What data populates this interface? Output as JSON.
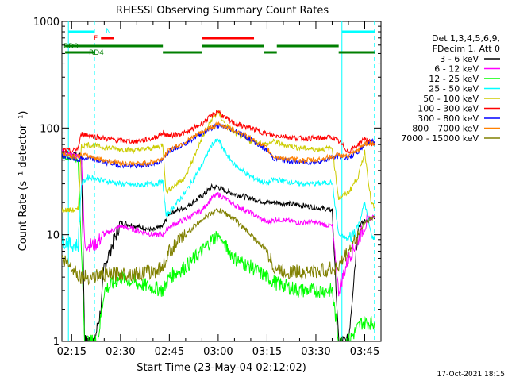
{
  "footer": {
    "timestamp": "17-Oct-2021 18:15"
  },
  "chart_data": {
    "type": "line",
    "title": "RHESSI Observing Summary Count Rates",
    "xlabel": "Start Time (23-May-04 02:12:02)",
    "ylabel": "Count Rate (s⁻¹ detector⁻¹)",
    "yscale": "log",
    "ylim": [
      1,
      1000
    ],
    "xlim": [
      "02:12",
      "03:50"
    ],
    "x_ticks": [
      "02:15",
      "02:30",
      "02:45",
      "03:00",
      "03:15",
      "03:30",
      "03:45"
    ],
    "y_ticks": [
      "1",
      "10",
      "100",
      "1000"
    ],
    "legend_header": [
      "Det 1,3,4,5,6,9,",
      "FDecim 1, Att 0"
    ],
    "legend_position": "right",
    "flags": {
      "N": {
        "label": "N",
        "color": "#00ffff",
        "intervals": [
          [
            "02:14",
            "02:22"
          ],
          [
            "03:38",
            "03:48"
          ]
        ]
      },
      "F": {
        "label": "F",
        "color": "#ff0000",
        "intervals": [
          [
            "02:24",
            "02:28"
          ],
          [
            "02:55",
            "03:11"
          ]
        ]
      },
      "RD0": {
        "label": "RD0",
        "color": "#007f00",
        "intervals": [
          [
            "02:13",
            "02:43"
          ],
          [
            "02:55",
            "03:14"
          ],
          [
            "03:18",
            "03:37"
          ]
        ]
      },
      "RD4": {
        "label": "RD4",
        "color": "#007f00",
        "intervals": [
          [
            "02:13",
            "02:22"
          ],
          [
            "02:43",
            "02:55"
          ],
          [
            "03:14",
            "03:18"
          ],
          [
            "03:37",
            "03:48"
          ]
        ]
      }
    },
    "series": [
      {
        "name": "3 - 6 keV",
        "color": "#000000",
        "points": [
          [
            "02:12",
            60
          ],
          [
            "02:15",
            57
          ],
          [
            "02:18",
            55
          ],
          [
            "02:19",
            1
          ],
          [
            "02:22",
            1
          ],
          [
            "02:24",
            2
          ],
          [
            "02:25",
            5
          ],
          [
            "02:30",
            13
          ],
          [
            "02:35",
            12
          ],
          [
            "02:40",
            11
          ],
          [
            "02:43",
            12
          ],
          [
            "02:45",
            16
          ],
          [
            "02:50",
            18
          ],
          [
            "02:55",
            23
          ],
          [
            "02:58",
            28
          ],
          [
            "03:00",
            28
          ],
          [
            "03:02",
            26
          ],
          [
            "03:05",
            24
          ],
          [
            "03:10",
            22
          ],
          [
            "03:15",
            20
          ],
          [
            "03:18",
            20
          ],
          [
            "03:25",
            19
          ],
          [
            "03:30",
            18
          ],
          [
            "03:35",
            17
          ],
          [
            "03:37",
            1
          ],
          [
            "03:40",
            1
          ],
          [
            "03:43",
            12
          ],
          [
            "03:46",
            14
          ],
          [
            "03:48",
            14
          ]
        ]
      },
      {
        "name": "6 - 12 keV",
        "color": "#ff00ff",
        "points": [
          [
            "02:12",
            60
          ],
          [
            "02:15",
            56
          ],
          [
            "02:18",
            55
          ],
          [
            "02:19",
            8
          ],
          [
            "02:22",
            8
          ],
          [
            "02:25",
            10
          ],
          [
            "02:30",
            12
          ],
          [
            "02:35",
            11
          ],
          [
            "02:40",
            10
          ],
          [
            "02:43",
            10
          ],
          [
            "02:45",
            12
          ],
          [
            "02:50",
            14
          ],
          [
            "02:55",
            17
          ],
          [
            "02:58",
            22
          ],
          [
            "03:00",
            24
          ],
          [
            "03:02",
            22
          ],
          [
            "03:05",
            19
          ],
          [
            "03:10",
            16
          ],
          [
            "03:15",
            13
          ],
          [
            "03:18",
            14
          ],
          [
            "03:25",
            13
          ],
          [
            "03:30",
            13
          ],
          [
            "03:35",
            12
          ],
          [
            "03:37",
            3
          ],
          [
            "03:40",
            6
          ],
          [
            "03:43",
            9
          ],
          [
            "03:46",
            14
          ],
          [
            "03:48",
            15
          ]
        ]
      },
      {
        "name": "12 - 25 keV",
        "color": "#00ff00",
        "points": [
          [
            "02:12",
            55
          ],
          [
            "02:15",
            52
          ],
          [
            "02:17",
            50
          ],
          [
            "02:19",
            1
          ],
          [
            "02:23",
            1
          ],
          [
            "02:25",
            3
          ],
          [
            "02:30",
            4
          ],
          [
            "02:35",
            3.5
          ],
          [
            "02:40",
            3.2
          ],
          [
            "02:43",
            3
          ],
          [
            "02:45",
            4
          ],
          [
            "02:50",
            5
          ],
          [
            "02:55",
            7
          ],
          [
            "02:58",
            9
          ],
          [
            "03:00",
            10
          ],
          [
            "03:02",
            8
          ],
          [
            "03:05",
            6
          ],
          [
            "03:10",
            5
          ],
          [
            "03:15",
            4
          ],
          [
            "03:18",
            3.5
          ],
          [
            "03:25",
            3
          ],
          [
            "03:30",
            3
          ],
          [
            "03:35",
            3
          ],
          [
            "03:37",
            1
          ],
          [
            "03:40",
            1
          ],
          [
            "03:44",
            1.5
          ],
          [
            "03:48",
            1.5
          ]
        ]
      },
      {
        "name": "25 - 50 keV",
        "color": "#00ffff",
        "points": [
          [
            "02:12",
            9
          ],
          [
            "02:15",
            8
          ],
          [
            "02:17",
            8
          ],
          [
            "02:18",
            30
          ],
          [
            "02:20",
            35
          ],
          [
            "02:25",
            32
          ],
          [
            "02:30",
            30
          ],
          [
            "02:35",
            29
          ],
          [
            "02:40",
            30
          ],
          [
            "02:43",
            31
          ],
          [
            "02:44",
            15
          ],
          [
            "02:50",
            25
          ],
          [
            "02:55",
            45
          ],
          [
            "02:58",
            70
          ],
          [
            "03:00",
            78
          ],
          [
            "03:02",
            60
          ],
          [
            "03:05",
            45
          ],
          [
            "03:10",
            35
          ],
          [
            "03:15",
            30
          ],
          [
            "03:17",
            33
          ],
          [
            "03:20",
            32
          ],
          [
            "03:25",
            30
          ],
          [
            "03:30",
            30
          ],
          [
            "03:35",
            31
          ],
          [
            "03:37",
            10
          ],
          [
            "03:40",
            9
          ],
          [
            "03:43",
            12
          ],
          [
            "03:45",
            20
          ],
          [
            "03:47",
            10
          ],
          [
            "03:48",
            9
          ]
        ]
      },
      {
        "name": "50 - 100 keV",
        "color": "#cccc00",
        "points": [
          [
            "02:12",
            17
          ],
          [
            "02:15",
            17
          ],
          [
            "02:17",
            17
          ],
          [
            "02:18",
            68
          ],
          [
            "02:20",
            70
          ],
          [
            "02:25",
            66
          ],
          [
            "02:30",
            63
          ],
          [
            "02:35",
            62
          ],
          [
            "02:40",
            65
          ],
          [
            "02:43",
            70
          ],
          [
            "02:44",
            25
          ],
          [
            "02:50",
            35
          ],
          [
            "02:55",
            80
          ],
          [
            "02:58",
            120
          ],
          [
            "03:00",
            140
          ],
          [
            "03:02",
            110
          ],
          [
            "03:05",
            90
          ],
          [
            "03:10",
            75
          ],
          [
            "03:15",
            70
          ],
          [
            "03:17",
            75
          ],
          [
            "03:20",
            70
          ],
          [
            "03:25",
            65
          ],
          [
            "03:30",
            63
          ],
          [
            "03:35",
            65
          ],
          [
            "03:37",
            22
          ],
          [
            "03:40",
            25
          ],
          [
            "03:43",
            35
          ],
          [
            "03:45",
            60
          ],
          [
            "03:47",
            20
          ],
          [
            "03:48",
            18
          ]
        ]
      },
      {
        "name": "100 - 300 keV",
        "color": "#ff0000",
        "points": [
          [
            "02:12",
            63
          ],
          [
            "02:15",
            60
          ],
          [
            "02:17",
            65
          ],
          [
            "02:18",
            88
          ],
          [
            "02:20",
            86
          ],
          [
            "02:25",
            80
          ],
          [
            "02:30",
            76
          ],
          [
            "02:35",
            75
          ],
          [
            "02:40",
            80
          ],
          [
            "02:43",
            90
          ],
          [
            "02:45",
            85
          ],
          [
            "02:50",
            90
          ],
          [
            "02:55",
            110
          ],
          [
            "02:58",
            130
          ],
          [
            "03:00",
            145
          ],
          [
            "03:02",
            125
          ],
          [
            "03:05",
            110
          ],
          [
            "03:10",
            100
          ],
          [
            "03:15",
            88
          ],
          [
            "03:17",
            85
          ],
          [
            "03:20",
            84
          ],
          [
            "03:25",
            80
          ],
          [
            "03:30",
            80
          ],
          [
            "03:35",
            82
          ],
          [
            "03:37",
            75
          ],
          [
            "03:40",
            60
          ],
          [
            "03:43",
            70
          ],
          [
            "03:45",
            80
          ],
          [
            "03:47",
            72
          ],
          [
            "03:48",
            70
          ]
        ]
      },
      {
        "name": "300 - 800 keV",
        "color": "#0000ff",
        "points": [
          [
            "02:12",
            55
          ],
          [
            "02:15",
            52
          ],
          [
            "02:17",
            50
          ],
          [
            "02:18",
            52
          ],
          [
            "02:20",
            52
          ],
          [
            "02:25",
            48
          ],
          [
            "02:30",
            45
          ],
          [
            "02:35",
            44
          ],
          [
            "02:40",
            46
          ],
          [
            "02:43",
            50
          ],
          [
            "02:45",
            62
          ],
          [
            "02:50",
            72
          ],
          [
            "02:55",
            90
          ],
          [
            "02:58",
            100
          ],
          [
            "03:00",
            105
          ],
          [
            "03:02",
            102
          ],
          [
            "03:05",
            95
          ],
          [
            "03:10",
            78
          ],
          [
            "03:15",
            62
          ],
          [
            "03:17",
            52
          ],
          [
            "03:20",
            50
          ],
          [
            "03:25",
            48
          ],
          [
            "03:30",
            48
          ],
          [
            "03:35",
            52
          ],
          [
            "03:37",
            55
          ],
          [
            "03:40",
            52
          ],
          [
            "03:43",
            60
          ],
          [
            "03:45",
            70
          ],
          [
            "03:47",
            75
          ],
          [
            "03:48",
            75
          ]
        ]
      },
      {
        "name": "800 - 7000 keV",
        "color": "#ff8000",
        "points": [
          [
            "02:12",
            58
          ],
          [
            "02:15",
            55
          ],
          [
            "02:17",
            54
          ],
          [
            "02:18",
            56
          ],
          [
            "02:20",
            55
          ],
          [
            "02:25",
            50
          ],
          [
            "02:30",
            47
          ],
          [
            "02:35",
            46
          ],
          [
            "02:40",
            48
          ],
          [
            "02:43",
            52
          ],
          [
            "02:45",
            63
          ],
          [
            "02:50",
            74
          ],
          [
            "02:55",
            92
          ],
          [
            "02:58",
            102
          ],
          [
            "03:00",
            108
          ],
          [
            "03:02",
            104
          ],
          [
            "03:05",
            96
          ],
          [
            "03:10",
            80
          ],
          [
            "03:15",
            64
          ],
          [
            "03:17",
            54
          ],
          [
            "03:20",
            52
          ],
          [
            "03:25",
            50
          ],
          [
            "03:30",
            50
          ],
          [
            "03:35",
            54
          ],
          [
            "03:37",
            56
          ],
          [
            "03:40",
            54
          ],
          [
            "03:43",
            62
          ],
          [
            "03:45",
            72
          ],
          [
            "03:47",
            72
          ],
          [
            "03:48",
            72
          ]
        ]
      },
      {
        "name": "7000 - 15000 keV",
        "color": "#808000",
        "points": [
          [
            "02:12",
            6
          ],
          [
            "02:15",
            5
          ],
          [
            "02:18",
            4
          ],
          [
            "02:20",
            4
          ],
          [
            "02:25",
            4.2
          ],
          [
            "02:30",
            4.3
          ],
          [
            "02:35",
            4.3
          ],
          [
            "02:40",
            4.5
          ],
          [
            "02:43",
            5
          ],
          [
            "02:45",
            7
          ],
          [
            "02:50",
            10
          ],
          [
            "02:55",
            14
          ],
          [
            "02:58",
            16
          ],
          [
            "03:00",
            17
          ],
          [
            "03:02",
            16
          ],
          [
            "03:05",
            14
          ],
          [
            "03:10",
            10
          ],
          [
            "03:15",
            7
          ],
          [
            "03:17",
            5
          ],
          [
            "03:20",
            4.5
          ],
          [
            "03:25",
            4.5
          ],
          [
            "03:30",
            4.5
          ],
          [
            "03:35",
            4.8
          ],
          [
            "03:37",
            5
          ],
          [
            "03:40",
            7
          ],
          [
            "03:43",
            10
          ],
          [
            "03:45",
            13
          ],
          [
            "03:47",
            14
          ],
          [
            "03:48",
            15
          ]
        ]
      }
    ]
  }
}
